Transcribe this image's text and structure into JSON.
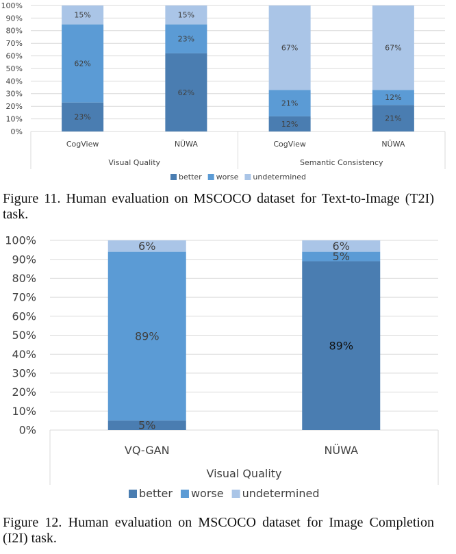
{
  "colors": {
    "better": "#4a7db1",
    "worse": "#5b9bd5",
    "undetermined": "#aac5e7"
  },
  "chart_data": [
    {
      "type": "bar",
      "stacked": true,
      "ylim": [
        0,
        100
      ],
      "yticks": [
        "0%",
        "10%",
        "20%",
        "30%",
        "40%",
        "50%",
        "60%",
        "70%",
        "80%",
        "90%",
        "100%"
      ],
      "groups": [
        {
          "label": "Visual Quality",
          "categories": [
            "CogView",
            "NÜWA"
          ]
        },
        {
          "label": "Semantic Consistency",
          "categories": [
            "CogView",
            "NÜWA"
          ]
        }
      ],
      "series": [
        {
          "name": "better",
          "values": [
            23,
            62,
            12,
            21
          ]
        },
        {
          "name": "worse",
          "values": [
            62,
            23,
            21,
            12
          ]
        },
        {
          "name": "undetermined",
          "values": [
            15,
            15,
            67,
            67
          ]
        }
      ],
      "legend": [
        "better",
        "worse",
        "undetermined"
      ],
      "legend_position": "bottom",
      "grid": true
    },
    {
      "type": "bar",
      "stacked": true,
      "ylim": [
        0,
        100
      ],
      "yticks": [
        "0%",
        "10%",
        "20%",
        "30%",
        "40%",
        "50%",
        "60%",
        "70%",
        "80%",
        "90%",
        "100%"
      ],
      "groups": [
        {
          "label": "Visual Quality",
          "categories": [
            "VQ-GAN",
            "NÜWA"
          ]
        }
      ],
      "series": [
        {
          "name": "better",
          "values": [
            5,
            89
          ]
        },
        {
          "name": "worse",
          "values": [
            89,
            5
          ]
        },
        {
          "name": "undetermined",
          "values": [
            6,
            6
          ]
        }
      ],
      "legend": [
        "better",
        "worse",
        "undetermined"
      ],
      "legend_position": "bottom",
      "grid": true
    }
  ],
  "captions": [
    "Figure 11.  Human evaluation on MSCOCO dataset for Text-to-Image (T2I) task.",
    "Figure 12.  Human evaluation on MSCOCO dataset for Image Completion (I2I) task."
  ]
}
